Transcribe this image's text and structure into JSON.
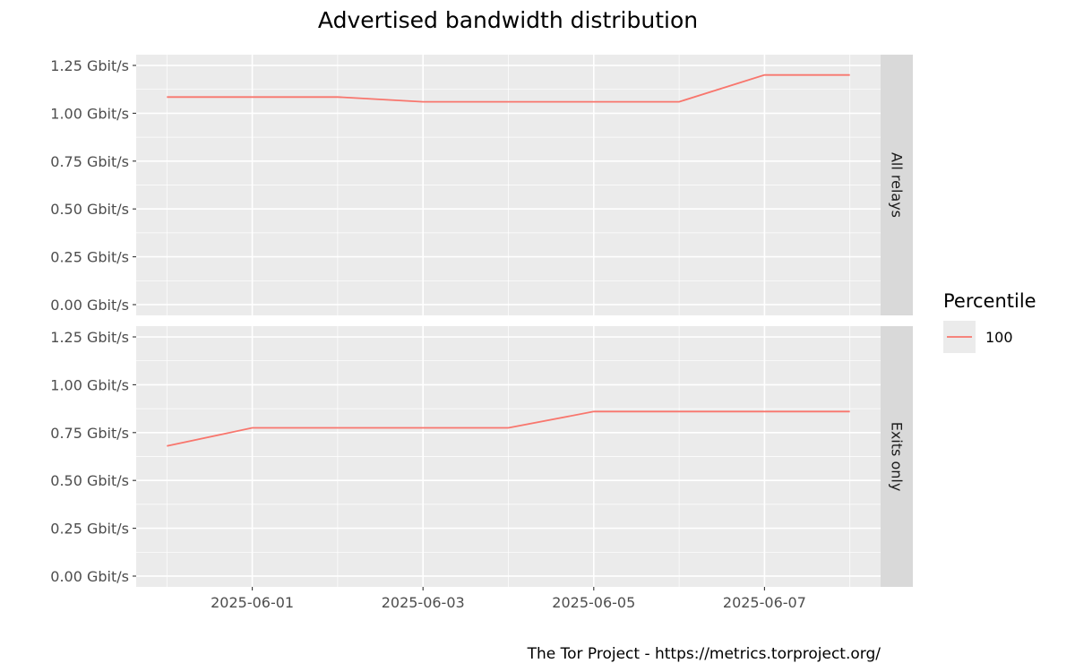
{
  "chart_data": {
    "type": "line",
    "title": "Advertised bandwidth distribution",
    "caption": "The Tor Project - https://metrics.torproject.org/",
    "xlabel": "",
    "ylabel": "",
    "x": [
      "2025-05-31",
      "2025-06-01",
      "2025-06-02",
      "2025-06-03",
      "2025-06-04",
      "2025-06-05",
      "2025-06-06",
      "2025-06-07",
      "2025-06-08"
    ],
    "x_ticks": [
      "2025-06-01",
      "2025-06-03",
      "2025-06-05",
      "2025-06-07"
    ],
    "y_ticks": [
      "0.00 Gbit/s",
      "0.25 Gbit/s",
      "0.50 Gbit/s",
      "0.75 Gbit/s",
      "1.00 Gbit/s",
      "1.25 Gbit/s"
    ],
    "ylim": [
      0,
      1.25
    ],
    "y_unit": "Gbit/s",
    "grid": true,
    "legend": {
      "title": "Percentile",
      "position": "right",
      "entries": [
        {
          "label": "100",
          "color": "#f8766d"
        }
      ]
    },
    "panels": [
      {
        "label": "All relays",
        "series": [
          {
            "name": "100",
            "color": "#f8766d",
            "values": [
              1.085,
              1.085,
              1.085,
              1.06,
              1.06,
              1.06,
              1.06,
              1.2,
              1.2
            ]
          }
        ]
      },
      {
        "label": "Exits only",
        "series": [
          {
            "name": "100",
            "color": "#f8766d",
            "values": [
              0.68,
              0.775,
              0.775,
              0.775,
              0.775,
              0.86,
              0.86,
              0.86,
              0.86
            ]
          }
        ]
      }
    ]
  }
}
